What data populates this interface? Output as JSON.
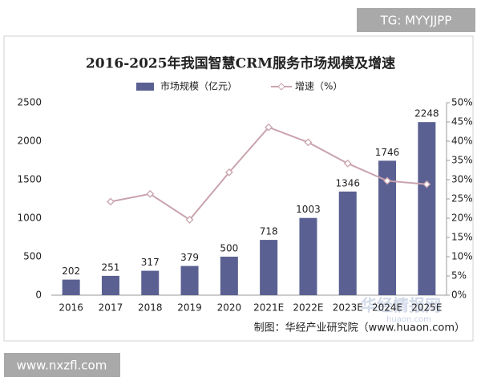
{
  "chart_data": {
    "type": "bar",
    "title": "2016-2025年我国智慧CRM服务市场规模及增速",
    "categories": [
      "2016",
      "2017",
      "2018",
      "2019",
      "2020",
      "2021E",
      "2022E",
      "2023E",
      "2024E",
      "2025E"
    ],
    "series": [
      {
        "name": "市场规模（亿元）",
        "color": "#5a6192",
        "values": [
          202,
          251,
          317,
          379,
          500,
          718,
          1003,
          1346,
          1746,
          2248
        ]
      },
      {
        "name": "增速（%）",
        "color": "#c9a3ad",
        "type": "line",
        "axis": "y2",
        "values": [
          null,
          24.3,
          26.3,
          19.6,
          31.9,
          43.6,
          39.7,
          34.2,
          29.7,
          28.8
        ]
      }
    ],
    "ylim": [
      0,
      2500
    ],
    "yticks": [
      0,
      500,
      1000,
      1500,
      2000,
      2500
    ],
    "y2lim": [
      0,
      50
    ],
    "y2ticks": [
      {
        "value": 0,
        "label": "0%"
      },
      {
        "value": 5,
        "label": "5%"
      },
      {
        "value": 10,
        "label": "10%"
      },
      {
        "value": 15,
        "label": "15%"
      },
      {
        "value": 20,
        "label": "20%"
      },
      {
        "value": 25,
        "label": "25%"
      },
      {
        "value": 30,
        "label": "30%"
      },
      {
        "value": 35,
        "label": "35%"
      },
      {
        "value": 40,
        "label": "40%"
      },
      {
        "value": 45,
        "label": "45%"
      },
      {
        "value": 50,
        "label": "50%"
      }
    ],
    "grid": false,
    "source": "制图：华经产业研究院（www.huaon.com）"
  },
  "watermarks": {
    "top": "TG: MYYJJPP",
    "bottom": "www.nxzfl.com",
    "brand": "华经情报网",
    "brand_url": "huaon.com"
  }
}
